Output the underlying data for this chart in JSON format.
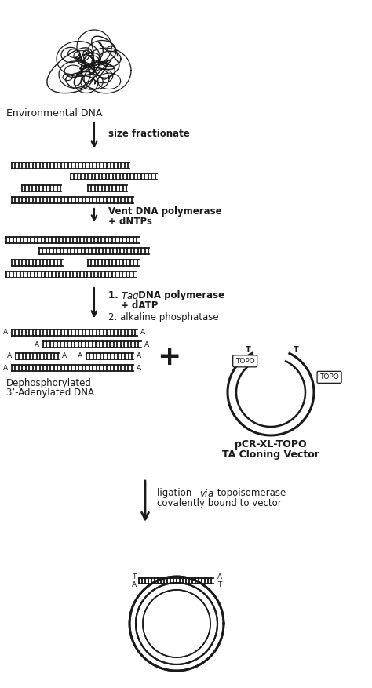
{
  "bg_color": "#ffffff",
  "text_color": "#1a1a1a",
  "line_color": "#1a1a1a",
  "label_env_dna": "Environmental DNA",
  "label_size_frac": "size fractionate",
  "label_vent_line1": "Vent DNA polymerase",
  "label_vent_line2": "+ dNTPs",
  "label_taq_line1": "1. ",
  "label_taq_italic": "Taq",
  "label_taq_line1b": " DNA polymerase",
  "label_taq_line2": "+ dATP",
  "label_taq_line3": "2. alkaline phosphatase",
  "label_dephos_line1": "Dephosphorylated",
  "label_dephos_line2": "3’-Adenylated DNA",
  "label_vector_line1": "pCR-XL-TOPO",
  "label_vector_line2": "TA Cloning Vector",
  "label_ligation_line1": "ligation ",
  "label_ligation_italic": "via",
  "label_ligation_line1b": " topoisomerase",
  "label_ligation_line2": "covalently bound to vector",
  "figsize": [
    4.74,
    8.77
  ],
  "dpi": 100
}
